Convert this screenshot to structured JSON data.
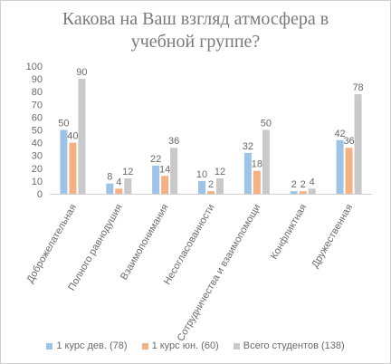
{
  "chart_data": {
    "type": "bar",
    "title_lines": [
      "Какова на Ваш взгляд атмосфера в",
      "учебной группе?"
    ],
    "categories": [
      "Доброжелательная",
      "Полного равнодушия",
      "Взаимопонимания",
      "Несогласованности",
      "Сотрудничества и взаимопомощи",
      "Конфликтная",
      "Дружественная"
    ],
    "series": [
      {
        "name": "1 курс дев. (78)",
        "color": "#9dc3e6",
        "values": [
          50,
          8,
          22,
          10,
          32,
          2,
          42
        ]
      },
      {
        "name": "1 курс юн. (60)",
        "color": "#f4b183",
        "values": [
          40,
          4,
          14,
          2,
          18,
          2,
          36
        ]
      },
      {
        "name": "Всего студентов (138)",
        "color": "#c9c9c9",
        "values": [
          90,
          12,
          36,
          12,
          50,
          4,
          78
        ]
      }
    ],
    "ylim": [
      0,
      100
    ],
    "yticks": [
      0,
      10,
      20,
      30,
      40,
      50,
      60,
      70,
      80,
      90,
      100
    ],
    "grid": false,
    "legend_position": "bottom",
    "data_labels": true
  }
}
